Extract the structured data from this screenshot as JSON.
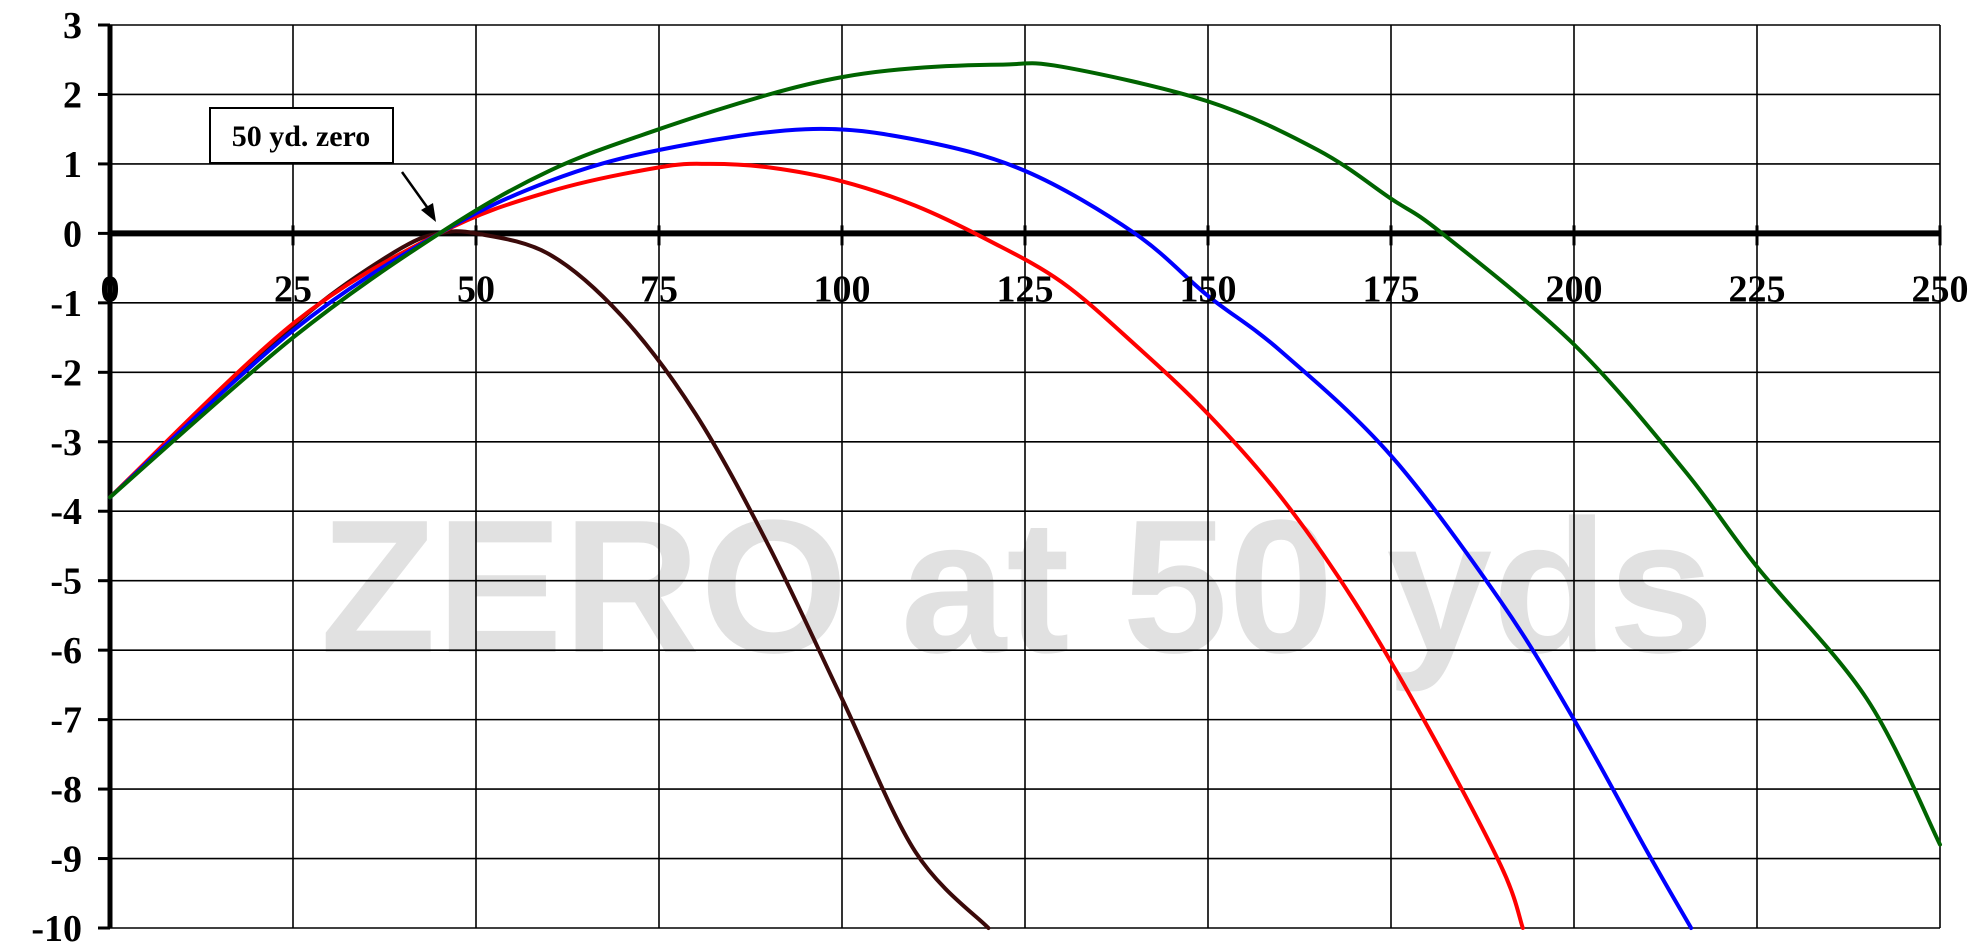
{
  "chart_data": {
    "type": "line",
    "title": "",
    "xlabel": "",
    "ylabel": "",
    "xlim": [
      0,
      250
    ],
    "ylim": [
      -10,
      3
    ],
    "x_ticks": [
      "0",
      "25",
      "50",
      "75",
      "100",
      "125",
      "150",
      "175",
      "200",
      "225",
      "250"
    ],
    "y_ticks": [
      "3",
      "2",
      "1",
      "0",
      "-1",
      "-2",
      "-3",
      "-4",
      "-5",
      "-6",
      "-7",
      "-8",
      "-9",
      "-10"
    ],
    "grid": true,
    "watermark": "ZERO at 50 yds",
    "annotation": {
      "text": "50 yd. zero",
      "points_to": {
        "x": 45,
        "y": 0
      }
    },
    "series": [
      {
        "color": "#3b0a0a",
        "x": [
          0,
          10,
          20,
          30,
          40,
          45,
          50,
          60,
          70,
          80,
          90,
          100,
          110,
          120
        ],
        "y": [
          -3.8,
          -2.8,
          -1.8,
          -0.9,
          -0.2,
          0.0,
          0.0,
          -0.3,
          -1.2,
          -2.6,
          -4.5,
          -6.7,
          -8.9,
          -10
        ]
      },
      {
        "color": "#ff0000",
        "x": [
          0,
          25,
          45,
          60,
          75,
          82,
          90,
          100,
          110,
          120,
          130,
          140,
          150,
          160,
          170,
          180,
          190,
          193
        ],
        "y": [
          -3.8,
          -1.3,
          0.0,
          0.6,
          0.95,
          1.0,
          0.95,
          0.75,
          0.4,
          -0.1,
          -0.7,
          -1.6,
          -2.6,
          -3.8,
          -5.3,
          -7.1,
          -9.1,
          -10
        ]
      },
      {
        "color": "#0000ff",
        "x": [
          0,
          25,
          45,
          60,
          75,
          95,
          110,
          125,
          140,
          150,
          160,
          175,
          190,
          200,
          210,
          216
        ],
        "y": [
          -3.8,
          -1.4,
          0.0,
          0.75,
          1.2,
          1.5,
          1.35,
          0.9,
          0.0,
          -0.9,
          -1.7,
          -3.2,
          -5.3,
          -7.0,
          -8.9,
          -10
        ]
      },
      {
        "color": "#006400",
        "x": [
          0,
          25,
          45,
          60,
          75,
          90,
          100,
          110,
          122,
          130,
          150,
          165,
          175,
          182,
          200,
          215,
          225,
          240,
          250
        ],
        "y": [
          -3.8,
          -1.5,
          0.0,
          0.9,
          1.5,
          2.0,
          2.25,
          2.38,
          2.43,
          2.4,
          1.9,
          1.2,
          0.5,
          0.0,
          -1.6,
          -3.4,
          -4.8,
          -6.7,
          -8.8
        ]
      }
    ]
  }
}
